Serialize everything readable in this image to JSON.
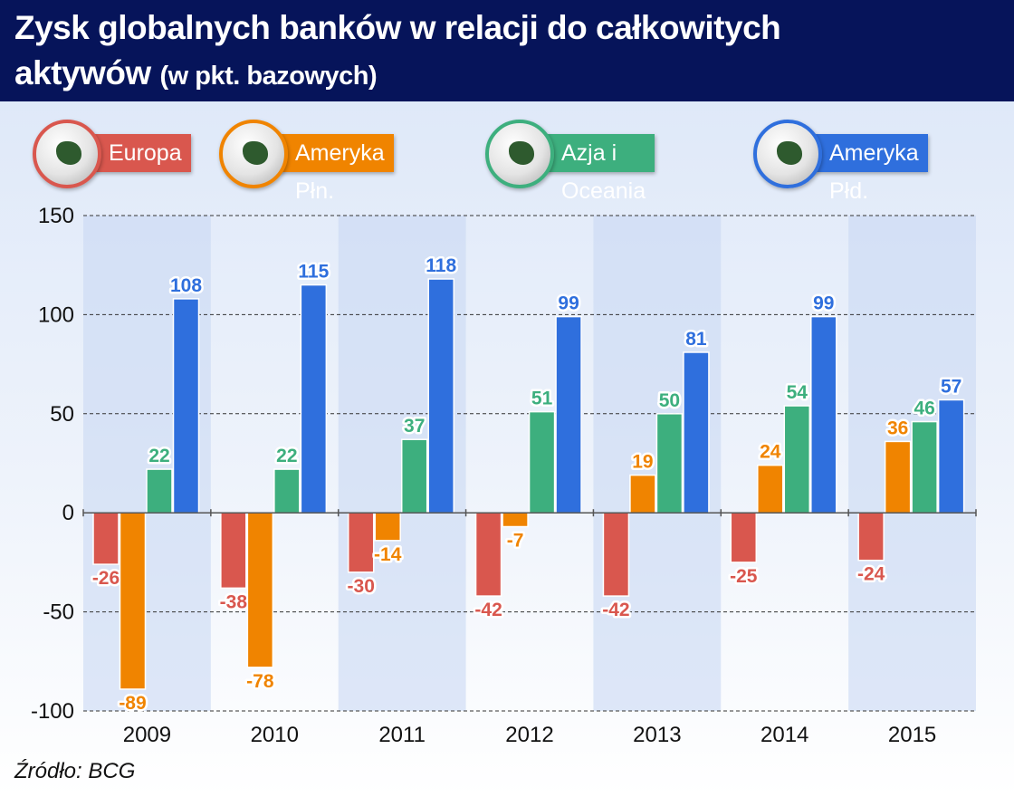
{
  "title": {
    "line1": "Zysk globalnych banków w relacji do całkowitych",
    "line2_main": "aktywów",
    "line2_sub": "(w pkt. bazowych)"
  },
  "source": "Źródło: BCG",
  "chart_data": {
    "type": "bar",
    "categories": [
      "2009",
      "2010",
      "2011",
      "2012",
      "2013",
      "2014",
      "2015"
    ],
    "series": [
      {
        "name": "Europa",
        "color": "#d9574e",
        "icon": "globe-europe-icon",
        "values": [
          -26,
          -38,
          -30,
          -42,
          -42,
          -25,
          -24
        ]
      },
      {
        "name": "Ameryka Płn.",
        "color": "#f08400",
        "icon": "globe-north-america-icon",
        "values": [
          -89,
          -78,
          -14,
          -7,
          19,
          24,
          36
        ]
      },
      {
        "name": "Azja i Oceania",
        "color": "#3daf7e",
        "icon": "globe-asia-icon",
        "values": [
          22,
          22,
          37,
          51,
          50,
          54,
          46
        ]
      },
      {
        "name": "Ameryka Płd.",
        "color": "#2f6fdd",
        "icon": "globe-south-america-icon",
        "values": [
          108,
          115,
          118,
          99,
          81,
          99,
          57
        ]
      }
    ],
    "yticks": [
      "150",
      "100",
      "50",
      "0",
      "-50",
      "-100"
    ],
    "ylim": [
      -100,
      150
    ],
    "grid": true,
    "legend": "top"
  }
}
